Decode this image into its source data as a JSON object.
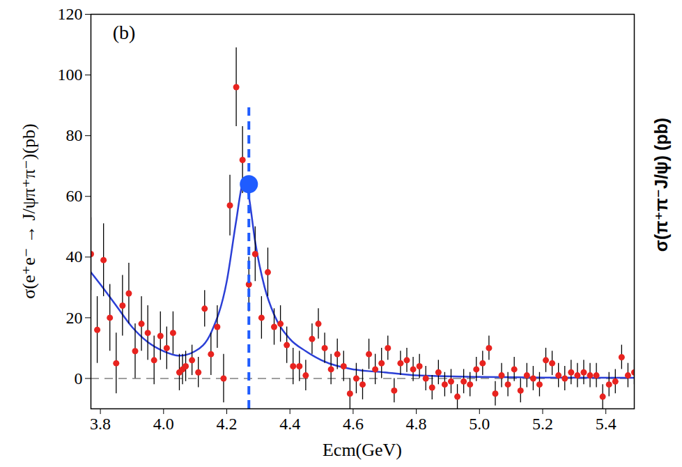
{
  "chart_data": {
    "type": "scatter",
    "panel_label": "(b)",
    "x_label": "Ecm(GeV)",
    "y_label": "σ(e⁺e⁻ → J/ψπ⁺π⁻)(pb)",
    "right_label": "σ(π⁺π⁻J/ψ) (pb)",
    "xlim": [
      3.77,
      5.49
    ],
    "xticks": [
      3.8,
      4,
      4.2,
      4.4,
      4.6,
      4.8,
      5,
      5.2,
      5.4
    ],
    "ylim": [
      -10,
      120
    ],
    "yticks": [
      0,
      20,
      40,
      60,
      80,
      100,
      120
    ],
    "grid": false,
    "series": [
      {
        "type": "line",
        "color": "#2b3fd6",
        "line_style": "solid",
        "x": [
          3.77,
          3.8,
          3.85,
          3.9,
          3.95,
          4.0,
          4.05,
          4.1,
          4.15,
          4.2,
          4.23,
          4.25,
          4.26,
          4.27,
          4.29,
          4.32,
          4.35,
          4.4,
          4.45,
          4.5,
          4.6,
          4.7,
          4.8,
          5.0,
          5.2,
          5.49
        ],
        "values": [
          35,
          31,
          24,
          17,
          12,
          9,
          7.5,
          9,
          15,
          32,
          52,
          64,
          65,
          60,
          45,
          30,
          21,
          13,
          9,
          6,
          3,
          2,
          1,
          0.5,
          0.3,
          0.2
        ]
      },
      {
        "type": "scatter",
        "color": "#e8231f",
        "marker": "circle",
        "x": [
          3.77,
          3.79,
          3.81,
          3.83,
          3.85,
          3.87,
          3.89,
          3.91,
          3.93,
          3.95,
          3.97,
          3.99,
          4.01,
          4.03,
          4.05,
          4.06,
          4.07,
          4.09,
          4.11,
          4.13,
          4.15,
          4.17,
          4.19,
          4.21,
          4.23,
          4.25,
          4.27,
          4.29,
          4.31,
          4.33,
          4.35,
          4.37,
          4.39,
          4.41,
          4.43,
          4.45,
          4.47,
          4.49,
          4.51,
          4.53,
          4.55,
          4.57,
          4.59,
          4.61,
          4.63,
          4.65,
          4.67,
          4.69,
          4.71,
          4.73,
          4.75,
          4.77,
          4.79,
          4.81,
          4.83,
          4.85,
          4.87,
          4.89,
          4.91,
          4.93,
          4.95,
          4.97,
          4.99,
          5.01,
          5.03,
          5.05,
          5.07,
          5.09,
          5.11,
          5.13,
          5.15,
          5.17,
          5.19,
          5.21,
          5.23,
          5.25,
          5.27,
          5.29,
          5.31,
          5.33,
          5.35,
          5.37,
          5.39,
          5.41,
          5.43,
          5.45,
          5.47,
          5.49
        ],
        "values": [
          41,
          16,
          39,
          20,
          5,
          24,
          28,
          9,
          18,
          15,
          6,
          14,
          10,
          15,
          2,
          3,
          4,
          6,
          2,
          23,
          8,
          17,
          0,
          57,
          96,
          72,
          31,
          41,
          20,
          35,
          17,
          18,
          11,
          4,
          4,
          1,
          13,
          18,
          10,
          3,
          8,
          4,
          -5,
          0,
          -2,
          8,
          3,
          5,
          10,
          -4,
          5,
          6,
          3,
          4,
          0,
          -3,
          2,
          -2,
          -1,
          -6,
          -1,
          -2,
          3,
          5,
          10,
          -5,
          1,
          -2,
          3,
          -4,
          1,
          0,
          -2,
          6,
          5,
          1,
          0,
          2,
          1,
          2,
          1,
          1,
          -6,
          -2,
          -1,
          7,
          1,
          2
        ],
        "errors": [
          12,
          11,
          12,
          11,
          10,
          10,
          10,
          9,
          9,
          9,
          8,
          8,
          7,
          7,
          6,
          5,
          5,
          5,
          5,
          6,
          7,
          7,
          8,
          10,
          13,
          11,
          9,
          9,
          7,
          8,
          6,
          6,
          6,
          6,
          5,
          5,
          5,
          5,
          5,
          5,
          5,
          5,
          5,
          5,
          5,
          5,
          5,
          5,
          4,
          4,
          4,
          4,
          4,
          4,
          4,
          4,
          4,
          4,
          4,
          4,
          4,
          4,
          4,
          4,
          4,
          4,
          4,
          4,
          4,
          4,
          4,
          4,
          4,
          4,
          4,
          4,
          4,
          4,
          4,
          4,
          4,
          4,
          4,
          4,
          4,
          4,
          4,
          4
        ]
      }
    ],
    "hline": {
      "y": 0,
      "color": "#808080",
      "line_style": "dashed"
    },
    "vline": {
      "x": 4.27,
      "ymin": -10,
      "ymax": 90,
      "color": "#1f5cff",
      "line_style": "dashed"
    },
    "marker_point": {
      "x": 4.27,
      "y": 64,
      "color": "#1f5cff",
      "marker": "circle"
    }
  }
}
